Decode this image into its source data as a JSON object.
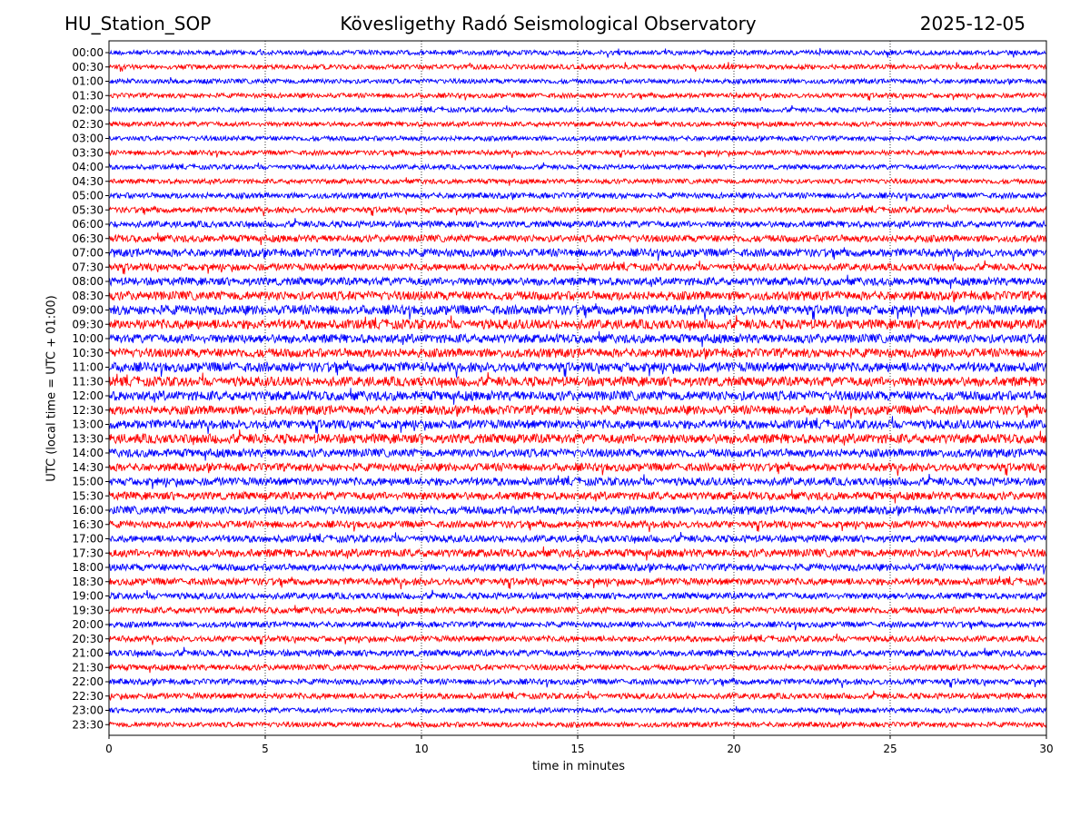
{
  "header": {
    "station": "HU_Station_SOP",
    "title": "Köveslig‌ethy Radó Seismological Observatory",
    "date": "2025-12-05"
  },
  "chart_data": {
    "type": "line",
    "title": "Köveslig‌ethy Radó Seismological Observatory",
    "xlabel": "time in minutes",
    "ylabel": "UTC (local time = UTC + 01:00)",
    "xlim": [
      0,
      30
    ],
    "x_ticks": [
      "0",
      "5",
      "10",
      "15",
      "20",
      "25",
      "30"
    ],
    "grid": "vertical dotted at each x tick",
    "colors": {
      "even_rows": "#0000ff",
      "odd_rows": "#ff0000"
    },
    "series": [
      {
        "name": "00:00",
        "color": "#0000ff",
        "amplitude": 0.15
      },
      {
        "name": "00:30",
        "color": "#ff0000",
        "amplitude": 0.15
      },
      {
        "name": "01:00",
        "color": "#0000ff",
        "amplitude": 0.15
      },
      {
        "name": "01:30",
        "color": "#ff0000",
        "amplitude": 0.15
      },
      {
        "name": "02:00",
        "color": "#0000ff",
        "amplitude": 0.15
      },
      {
        "name": "02:30",
        "color": "#ff0000",
        "amplitude": 0.15
      },
      {
        "name": "03:00",
        "color": "#0000ff",
        "amplitude": 0.15
      },
      {
        "name": "03:30",
        "color": "#ff0000",
        "amplitude": 0.15
      },
      {
        "name": "04:00",
        "color": "#0000ff",
        "amplitude": 0.15
      },
      {
        "name": "04:30",
        "color": "#ff0000",
        "amplitude": 0.15
      },
      {
        "name": "05:00",
        "color": "#0000ff",
        "amplitude": 0.18
      },
      {
        "name": "05:30",
        "color": "#ff0000",
        "amplitude": 0.18
      },
      {
        "name": "06:00",
        "color": "#0000ff",
        "amplitude": 0.2
      },
      {
        "name": "06:30",
        "color": "#ff0000",
        "amplitude": 0.22
      },
      {
        "name": "07:00",
        "color": "#0000ff",
        "amplitude": 0.25
      },
      {
        "name": "07:30",
        "color": "#ff0000",
        "amplitude": 0.22
      },
      {
        "name": "08:00",
        "color": "#0000ff",
        "amplitude": 0.25
      },
      {
        "name": "08:30",
        "color": "#ff0000",
        "amplitude": 0.28
      },
      {
        "name": "09:00",
        "color": "#0000ff",
        "amplitude": 0.3
      },
      {
        "name": "09:30",
        "color": "#ff0000",
        "amplitude": 0.3
      },
      {
        "name": "10:00",
        "color": "#0000ff",
        "amplitude": 0.28
      },
      {
        "name": "10:30",
        "color": "#ff0000",
        "amplitude": 0.28
      },
      {
        "name": "11:00",
        "color": "#0000ff",
        "amplitude": 0.3
      },
      {
        "name": "11:30",
        "color": "#ff0000",
        "amplitude": 0.3
      },
      {
        "name": "12:00",
        "color": "#0000ff",
        "amplitude": 0.3
      },
      {
        "name": "12:30",
        "color": "#ff0000",
        "amplitude": 0.28
      },
      {
        "name": "13:00",
        "color": "#0000ff",
        "amplitude": 0.28
      },
      {
        "name": "13:30",
        "color": "#ff0000",
        "amplitude": 0.3
      },
      {
        "name": "14:00",
        "color": "#0000ff",
        "amplitude": 0.26
      },
      {
        "name": "14:30",
        "color": "#ff0000",
        "amplitude": 0.25
      },
      {
        "name": "15:00",
        "color": "#0000ff",
        "amplitude": 0.25
      },
      {
        "name": "15:30",
        "color": "#ff0000",
        "amplitude": 0.25
      },
      {
        "name": "16:00",
        "color": "#0000ff",
        "amplitude": 0.25
      },
      {
        "name": "16:30",
        "color": "#ff0000",
        "amplitude": 0.22
      },
      {
        "name": "17:00",
        "color": "#0000ff",
        "amplitude": 0.22
      },
      {
        "name": "17:30",
        "color": "#ff0000",
        "amplitude": 0.25
      },
      {
        "name": "18:00",
        "color": "#0000ff",
        "amplitude": 0.22
      },
      {
        "name": "18:30",
        "color": "#ff0000",
        "amplitude": 0.22
      },
      {
        "name": "19:00",
        "color": "#0000ff",
        "amplitude": 0.2
      },
      {
        "name": "19:30",
        "color": "#ff0000",
        "amplitude": 0.2
      },
      {
        "name": "20:00",
        "color": "#0000ff",
        "amplitude": 0.18
      },
      {
        "name": "20:30",
        "color": "#ff0000",
        "amplitude": 0.18
      },
      {
        "name": "21:00",
        "color": "#0000ff",
        "amplitude": 0.2
      },
      {
        "name": "21:30",
        "color": "#ff0000",
        "amplitude": 0.18
      },
      {
        "name": "22:00",
        "color": "#0000ff",
        "amplitude": 0.18
      },
      {
        "name": "22:30",
        "color": "#ff0000",
        "amplitude": 0.18
      },
      {
        "name": "23:00",
        "color": "#0000ff",
        "amplitude": 0.16
      },
      {
        "name": "23:30",
        "color": "#ff0000",
        "amplitude": 0.16
      }
    ]
  }
}
